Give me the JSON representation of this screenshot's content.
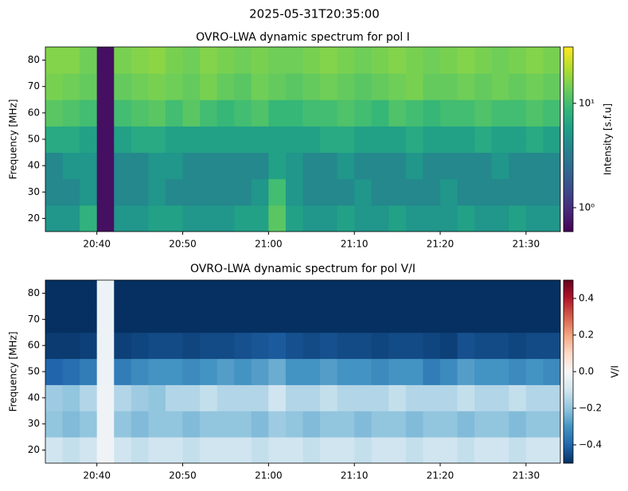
{
  "suptitle": "2025-05-31T20:35:00",
  "chart_data": [
    {
      "type": "heatmap",
      "title": "OVRO-LWA dynamic spectrum for pol I",
      "ylabel": "Frequency [MHz]",
      "colorbar_label": "Intensity [s.f.u]",
      "colormap": "viridis",
      "log": true,
      "clim": [
        0.59,
        34.7
      ],
      "cticks": [
        {
          "value": 1,
          "label": "10⁰"
        },
        {
          "value": 10,
          "label": "10¹"
        }
      ],
      "x": [
        "20:34",
        "20:36",
        "20:38",
        "20:40",
        "20:42",
        "20:44",
        "20:46",
        "20:48",
        "20:50",
        "20:52",
        "20:54",
        "20:56",
        "20:58",
        "21:00",
        "21:02",
        "21:04",
        "21:06",
        "21:08",
        "21:10",
        "21:12",
        "21:14",
        "21:16",
        "21:18",
        "21:20",
        "21:22",
        "21:24",
        "21:26",
        "21:28",
        "21:30",
        "21:32",
        "21:34"
      ],
      "y": [
        15,
        25,
        35,
        45,
        55,
        65,
        75,
        85
      ],
      "xlim": [
        "20:34",
        "21:34"
      ],
      "xticks": [
        "20:40",
        "20:50",
        "21:00",
        "21:10",
        "21:20",
        "21:30"
      ],
      "ylim": [
        15,
        85
      ],
      "yticks": [
        20,
        30,
        40,
        50,
        60,
        70,
        80
      ],
      "values": [
        [
          5,
          5,
          8,
          0.7,
          5,
          5,
          6,
          6,
          5,
          5,
          5,
          6,
          6,
          12,
          6,
          5,
          5,
          6,
          5,
          5,
          6,
          5,
          5,
          5,
          6,
          5,
          5,
          6,
          5,
          5
        ],
        [
          4,
          4,
          5,
          0.7,
          4,
          4,
          5,
          4,
          4,
          4,
          4,
          4,
          5,
          10,
          5,
          4,
          4,
          4,
          5,
          4,
          4,
          4,
          4,
          5,
          4,
          4,
          4,
          4,
          4,
          4
        ],
        [
          4,
          5,
          5,
          0.7,
          4,
          4,
          5,
          5,
          4,
          4,
          4,
          4,
          4,
          6,
          5,
          4,
          4,
          5,
          4,
          4,
          4,
          5,
          4,
          4,
          4,
          4,
          5,
          4,
          4,
          4
        ],
        [
          7,
          7,
          6,
          0.7,
          6,
          7,
          7,
          6,
          6,
          6,
          6,
          6,
          6,
          6,
          6,
          6,
          7,
          7,
          6,
          6,
          6,
          7,
          6,
          6,
          6,
          7,
          6,
          6,
          7,
          6
        ],
        [
          12,
          11,
          10,
          0.7,
          10,
          11,
          12,
          10,
          12,
          10,
          9,
          10,
          11,
          9,
          9,
          10,
          10,
          11,
          10,
          9,
          11,
          10,
          9,
          10,
          10,
          11,
          10,
          10,
          11,
          10
        ],
        [
          15,
          14,
          13,
          0.7,
          13,
          14,
          15,
          14,
          13,
          15,
          13,
          12,
          14,
          13,
          12,
          13,
          14,
          13,
          12,
          13,
          14,
          15,
          13,
          13,
          14,
          13,
          14,
          13,
          14,
          13
        ],
        [
          16,
          16,
          14,
          0.7,
          15,
          16,
          17,
          15,
          14,
          16,
          15,
          14,
          15,
          14,
          14,
          15,
          16,
          15,
          14,
          15,
          16,
          15,
          14,
          15,
          16,
          15,
          14,
          15,
          16,
          15
        ]
      ]
    },
    {
      "type": "heatmap",
      "title": "OVRO-LWA dynamic spectrum for pol V/I",
      "ylabel": "Frequency [MHz]",
      "colorbar_label": "V/I",
      "colormap": "RdBu_r",
      "log": false,
      "clim": [
        -0.5,
        0.5
      ],
      "cticks": [
        {
          "value": -0.4,
          "label": "−0.4"
        },
        {
          "value": -0.2,
          "label": "−0.2"
        },
        {
          "value": 0,
          "label": "0.0"
        },
        0.2,
        0.4
      ],
      "x": [
        "20:34",
        "20:36",
        "20:38",
        "20:40",
        "20:42",
        "20:44",
        "20:46",
        "20:48",
        "20:50",
        "20:52",
        "20:54",
        "20:56",
        "20:58",
        "21:00",
        "21:02",
        "21:04",
        "21:06",
        "21:08",
        "21:10",
        "21:12",
        "21:14",
        "21:16",
        "21:18",
        "21:20",
        "21:22",
        "21:24",
        "21:26",
        "21:28",
        "21:30",
        "21:32",
        "21:34"
      ],
      "y": [
        15,
        25,
        35,
        45,
        55,
        65,
        75,
        85
      ],
      "xlim": [
        "20:34",
        "21:34"
      ],
      "xticks": [
        "20:40",
        "20:50",
        "21:00",
        "21:10",
        "21:20",
        "21:30"
      ],
      "ylim": [
        15,
        85
      ],
      "yticks": [
        20,
        30,
        40,
        50,
        60,
        70,
        80
      ],
      "values": [
        [
          -0.1,
          -0.12,
          -0.1,
          -0.02,
          -0.1,
          -0.12,
          -0.1,
          -0.1,
          -0.12,
          -0.1,
          -0.1,
          -0.1,
          -0.12,
          -0.1,
          -0.1,
          -0.12,
          -0.1,
          -0.1,
          -0.12,
          -0.1,
          -0.1,
          -0.12,
          -0.1,
          -0.1,
          -0.12,
          -0.1,
          -0.1,
          -0.12,
          -0.1,
          -0.1
        ],
        [
          -0.2,
          -0.22,
          -0.2,
          -0.02,
          -0.2,
          -0.22,
          -0.2,
          -0.2,
          -0.22,
          -0.2,
          -0.2,
          -0.2,
          -0.22,
          -0.18,
          -0.2,
          -0.22,
          -0.2,
          -0.2,
          -0.22,
          -0.2,
          -0.2,
          -0.22,
          -0.2,
          -0.2,
          -0.22,
          -0.2,
          -0.2,
          -0.22,
          -0.2,
          -0.2
        ],
        [
          -0.18,
          -0.2,
          -0.15,
          -0.02,
          -0.15,
          -0.18,
          -0.2,
          -0.15,
          -0.15,
          -0.12,
          -0.15,
          -0.15,
          -0.15,
          -0.1,
          -0.15,
          -0.15,
          -0.12,
          -0.15,
          -0.15,
          -0.15,
          -0.12,
          -0.15,
          -0.15,
          -0.15,
          -0.12,
          -0.15,
          -0.15,
          -0.12,
          -0.15,
          -0.15
        ],
        [
          -0.4,
          -0.38,
          -0.35,
          -0.03,
          -0.35,
          -0.32,
          -0.3,
          -0.3,
          -0.32,
          -0.3,
          -0.28,
          -0.3,
          -0.28,
          -0.25,
          -0.3,
          -0.3,
          -0.28,
          -0.3,
          -0.3,
          -0.32,
          -0.3,
          -0.3,
          -0.35,
          -0.32,
          -0.28,
          -0.3,
          -0.3,
          -0.32,
          -0.3,
          -0.32
        ],
        [
          -0.48,
          -0.48,
          -0.47,
          -0.03,
          -0.47,
          -0.46,
          -0.45,
          -0.45,
          -0.46,
          -0.45,
          -0.45,
          -0.44,
          -0.43,
          -0.42,
          -0.44,
          -0.45,
          -0.44,
          -0.45,
          -0.45,
          -0.46,
          -0.45,
          -0.45,
          -0.46,
          -0.47,
          -0.44,
          -0.45,
          -0.45,
          -0.46,
          -0.45,
          -0.45
        ],
        [
          -0.5,
          -0.5,
          -0.5,
          -0.03,
          -0.5,
          -0.5,
          -0.5,
          -0.5,
          -0.5,
          -0.5,
          -0.5,
          -0.5,
          -0.5,
          -0.5,
          -0.5,
          -0.5,
          -0.5,
          -0.5,
          -0.5,
          -0.5,
          -0.5,
          -0.5,
          -0.5,
          -0.5,
          -0.5,
          -0.5,
          -0.5,
          -0.5,
          -0.5,
          -0.5
        ],
        [
          -0.5,
          -0.5,
          -0.5,
          -0.03,
          -0.5,
          -0.5,
          -0.5,
          -0.5,
          -0.5,
          -0.5,
          -0.5,
          -0.5,
          -0.5,
          -0.5,
          -0.5,
          -0.5,
          -0.5,
          -0.5,
          -0.5,
          -0.5,
          -0.5,
          -0.5,
          -0.5,
          -0.5,
          -0.5,
          -0.5,
          -0.5,
          -0.5,
          -0.5,
          -0.5
        ]
      ]
    }
  ]
}
